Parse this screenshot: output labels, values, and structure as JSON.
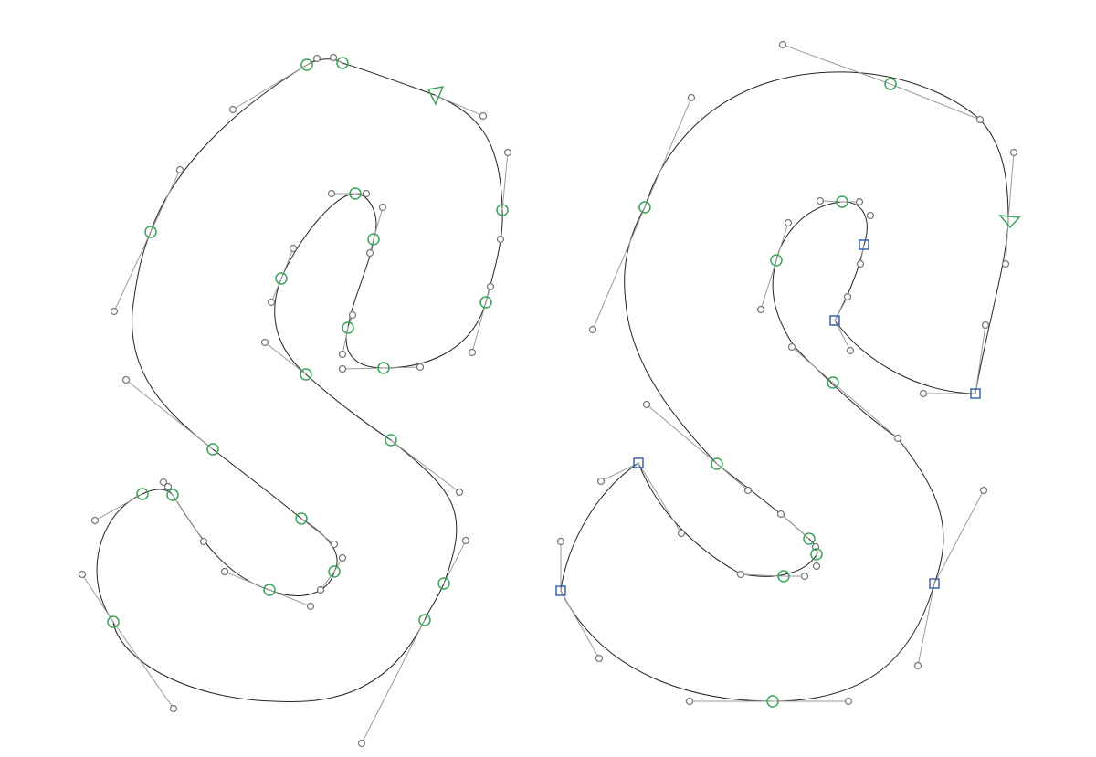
{
  "colors": {
    "outline": "#222222",
    "handle": "#9a9a9a",
    "smooth_node": "#3aa55a",
    "corner_node": "#3b63b0"
  },
  "glyphs": [
    {
      "name": "glyph-s-left"
    },
    {
      "name": "glyph-s-right"
    }
  ]
}
